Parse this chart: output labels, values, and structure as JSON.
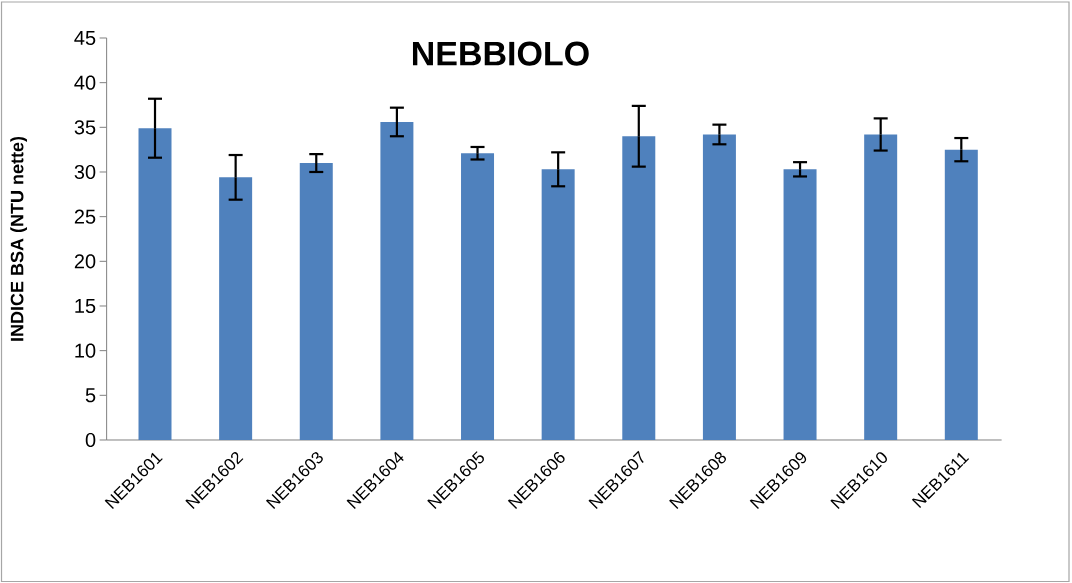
{
  "chart_data": {
    "type": "bar",
    "title": "NEBBIOLO",
    "ylabel": "INDICE BSA (NTU nette)",
    "categories": [
      "NEB1601",
      "NEB1602",
      "NEB1603",
      "NEB1604",
      "NEB1605",
      "NEB1606",
      "NEB1607",
      "NEB1608",
      "NEB1609",
      "NEB1610",
      "NEB1611"
    ],
    "values": [
      34.9,
      29.4,
      31.0,
      35.6,
      32.1,
      30.3,
      34.0,
      34.2,
      30.3,
      34.2,
      32.5
    ],
    "errors": [
      3.3,
      2.5,
      1.0,
      1.6,
      0.7,
      1.9,
      3.4,
      1.1,
      0.8,
      1.8,
      1.3
    ],
    "color": "#4f81bd",
    "ylim": [
      0,
      45
    ],
    "yticks": [
      0,
      5,
      10,
      15,
      20,
      25,
      30,
      35,
      40,
      45
    ]
  }
}
